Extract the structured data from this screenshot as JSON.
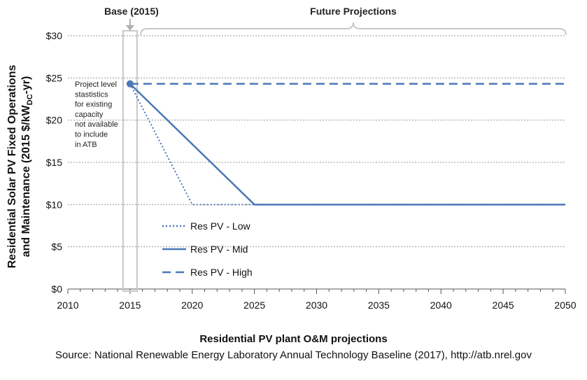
{
  "chart_data": {
    "type": "line",
    "title": "Residential PV plant O&M projections",
    "source": "Source: National Renewable Energy Laboratory Annual Technology Baseline (2017), http://atb.nrel.gov",
    "ylabel_line1": "Residential Solar PV Fixed Operations",
    "ylabel_line2_prefix": "and Maintenance  (2015 $/kW",
    "ylabel_line2_sub": "DC",
    "ylabel_line2_suffix": "-yr)",
    "xlabel": "",
    "xlim": [
      2010,
      2050
    ],
    "ylim": [
      0,
      30
    ],
    "x_ticks": [
      2010,
      2015,
      2020,
      2025,
      2030,
      2035,
      2040,
      2045,
      2050
    ],
    "y_ticks": [
      0,
      5,
      10,
      15,
      20,
      25,
      30
    ],
    "y_tick_labels": [
      "$0",
      "$5",
      "$10",
      "$15",
      "$20",
      "$25",
      "$30"
    ],
    "grid": "horizontal dotted",
    "series": [
      {
        "name": "Res PV - Low",
        "style": "dotted",
        "color": "#4a78b8",
        "points": [
          [
            2015,
            24.3
          ],
          [
            2020,
            10.0
          ],
          [
            2050,
            10.0
          ]
        ]
      },
      {
        "name": "Res PV - Mid",
        "style": "solid",
        "color": "#4a78b8",
        "points": [
          [
            2015,
            24.3
          ],
          [
            2025,
            10.0
          ],
          [
            2050,
            10.0
          ]
        ]
      },
      {
        "name": "Res PV - High",
        "style": "dashed",
        "color": "#4a78b8",
        "points": [
          [
            2015,
            24.3
          ],
          [
            2050,
            24.3
          ]
        ]
      }
    ],
    "base_point": {
      "x": 2015,
      "y": 24.3
    },
    "base_label": "Base (2015)",
    "future_label": "Future Projections",
    "note_lines": [
      "Project level",
      "stastistics",
      "for existing",
      "capacity",
      "not available",
      "to include",
      "in ATB"
    ]
  }
}
